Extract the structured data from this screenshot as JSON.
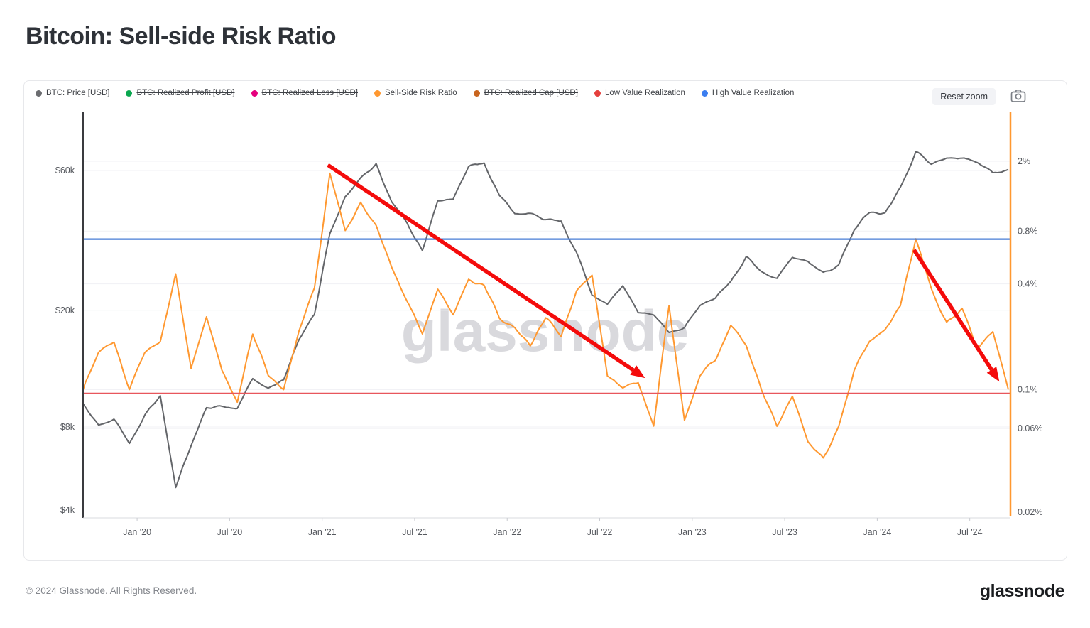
{
  "page": {
    "title": "Bitcoin: Sell-side Risk Ratio",
    "watermark": "glassnode",
    "footer_copyright": "© 2024 Glassnode. All Rights Reserved.",
    "footer_logo": "glassnode"
  },
  "toolbar": {
    "reset_zoom_label": "Reset zoom",
    "camera_icon": "camera-icon"
  },
  "legend": [
    {
      "label": "BTC: Price [USD]",
      "color": "#6b6c70",
      "struck": false
    },
    {
      "label": "BTC: Realized Profit [USD]",
      "color": "#0aa74f",
      "struck": true
    },
    {
      "label": "BTC: Realized Loss [USD]",
      "color": "#e6007e",
      "struck": true
    },
    {
      "label": "Sell-Side Risk Ratio",
      "color": "#ff9830",
      "struck": false
    },
    {
      "label": "BTC: Realized Cap [USD]",
      "color": "#c8641e",
      "struck": true
    },
    {
      "label": "Low Value Realization",
      "color": "#e5403d",
      "struck": false
    },
    {
      "label": "High Value Realization",
      "color": "#3b7ef0",
      "struck": false
    }
  ],
  "chart_data": {
    "type": "line",
    "title": "Bitcoin: Sell-side Risk Ratio",
    "x_unit": "decimal_year",
    "x_domain": [
      2019.708,
      2024.72
    ],
    "x_start": 2019.7083,
    "x_step_years": 0.0833333,
    "x_ticks": [
      {
        "label": "Jan '20",
        "year": 2020.0
      },
      {
        "label": "Jul '20",
        "year": 2020.5
      },
      {
        "label": "Jan '21",
        "year": 2021.0
      },
      {
        "label": "Jul '21",
        "year": 2021.5
      },
      {
        "label": "Jan '22",
        "year": 2022.0
      },
      {
        "label": "Jul '22",
        "year": 2022.5
      },
      {
        "label": "Jan '23",
        "year": 2023.0
      },
      {
        "label": "Jul '23",
        "year": 2023.5
      },
      {
        "label": "Jan '24",
        "year": 2024.0
      },
      {
        "label": "Jul '24",
        "year": 2024.5
      }
    ],
    "left_axis": {
      "scale": "log",
      "series": "BTC: Price [USD]",
      "ticks": [
        {
          "label": "$4k",
          "value": 4000
        },
        {
          "label": "$8k",
          "value": 8000
        },
        {
          "label": "$20k",
          "value": 20000
        },
        {
          "label": "$60k",
          "value": 60000
        }
      ]
    },
    "right_axis": {
      "scale": "log",
      "series": "Sell-Side Risk Ratio",
      "ticks": [
        {
          "label": "0.02%",
          "value": 0.02
        },
        {
          "label": "0.06%",
          "value": 0.06
        },
        {
          "label": "0.1%",
          "value": 0.1
        },
        {
          "label": "0.4%",
          "value": 0.4
        },
        {
          "label": "0.8%",
          "value": 0.8
        },
        {
          "label": "2%",
          "value": 2
        }
      ]
    },
    "series": [
      {
        "name": "BTC: Price [USD]",
        "axis": "left",
        "color": "#636569",
        "values_usd": [
          9600,
          8100,
          8500,
          7000,
          8800,
          10200,
          5000,
          6900,
          9300,
          9400,
          9200,
          11800,
          10800,
          11500,
          16100,
          19400,
          36800,
          48600,
          56300,
          63200,
          46700,
          40100,
          31800,
          47000,
          48100,
          61600,
          63600,
          48900,
          43100,
          42500,
          41100,
          40400,
          31300,
          22600,
          20800,
          24400,
          19700,
          19100,
          16900,
          17400,
          20900,
          22200,
          25000,
          30300,
          27000,
          25900,
          30300,
          29200,
          26600,
          28500,
          37900,
          42900,
          42500,
          51800,
          69000,
          63400,
          66300,
          66000,
          64100,
          58700,
          60500
        ]
      },
      {
        "name": "Sell-Side Risk Ratio",
        "axis": "right",
        "color": "#ff9830",
        "values_pct": [
          0.1,
          0.16,
          0.19,
          0.1,
          0.16,
          0.19,
          0.45,
          0.13,
          0.26,
          0.13,
          0.085,
          0.21,
          0.12,
          0.1,
          0.22,
          0.38,
          1.7,
          0.8,
          1.15,
          0.85,
          0.5,
          0.32,
          0.21,
          0.38,
          0.27,
          0.42,
          0.4,
          0.26,
          0.22,
          0.18,
          0.26,
          0.2,
          0.37,
          0.45,
          0.12,
          0.1,
          0.11,
          0.062,
          0.3,
          0.068,
          0.12,
          0.15,
          0.23,
          0.18,
          0.1,
          0.062,
          0.09,
          0.05,
          0.04,
          0.062,
          0.13,
          0.19,
          0.22,
          0.3,
          0.74,
          0.38,
          0.24,
          0.29,
          0.17,
          0.21,
          0.1
        ]
      },
      {
        "name": "Low Value Realization",
        "axis": "right",
        "color": "#e8575c",
        "constant_pct": 0.095
      },
      {
        "name": "High Value Realization",
        "axis": "right",
        "color": "#477cd6",
        "constant_pct": 0.72
      }
    ],
    "annotations": [
      {
        "type": "arrow",
        "color": "#f40b0b",
        "x1_frac": 0.264,
        "y1_frac": 0.127,
        "x2_frac": 0.606,
        "y2_frac": 0.654
      },
      {
        "type": "arrow",
        "color": "#f40b0b",
        "x1_frac": 0.896,
        "y1_frac": 0.337,
        "x2_frac": 0.988,
        "y2_frac": 0.663
      }
    ],
    "grid": true,
    "legend_position": "top-left"
  }
}
